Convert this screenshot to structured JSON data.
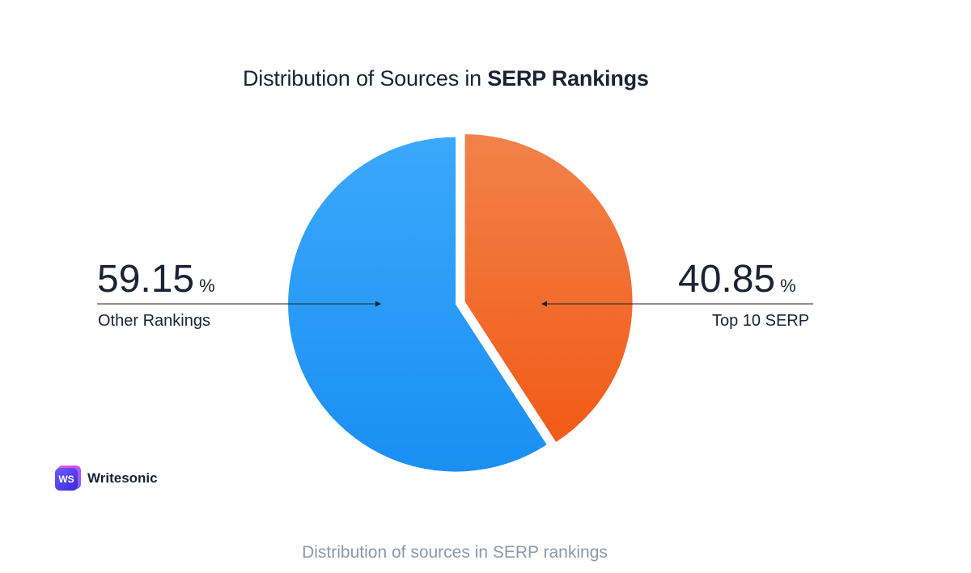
{
  "chart_data": {
    "type": "pie",
    "title": "Distribution of Sources in",
    "title_bold": "SERP Rankings",
    "slices": [
      {
        "label": "Other Rankings",
        "value": 59.15,
        "value_text": "59.15",
        "unit": "%",
        "color": "#2ea3fa"
      },
      {
        "label": "Top 10 SERP",
        "value": 40.85,
        "value_text": "40.85",
        "unit": "%",
        "color": "#f46a2c"
      }
    ]
  },
  "branding": {
    "mark_text": "WS",
    "name": "Writesonic"
  },
  "caption": "Distribution of sources in SERP rankings"
}
